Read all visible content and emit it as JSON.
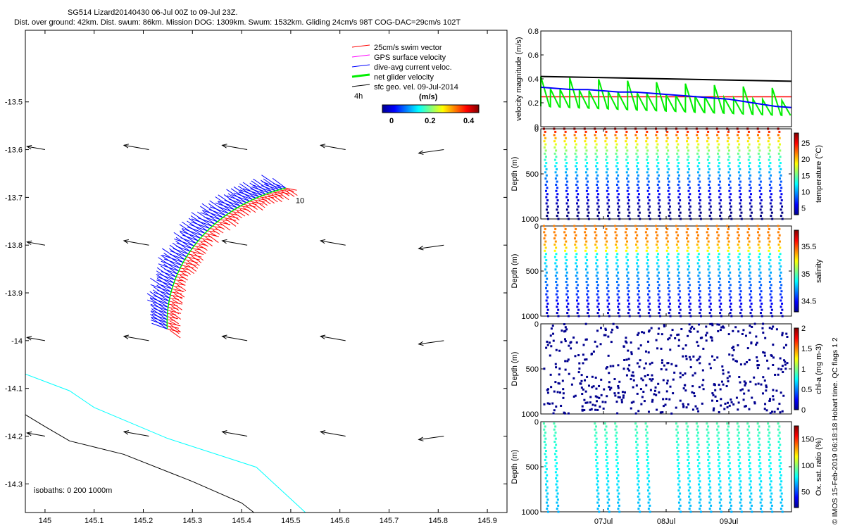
{
  "header": {
    "title_line1": "SG514 Lizard20140430 06-Jul 00Z to 09-Jul 23Z.",
    "title_line2": "Dist. over ground: 42km. Dist. swum: 86km. Mission DOG: 1309km. Swum: 1532km. Gliding 24cm/s 98T COG-DAC=29cm/s 102T"
  },
  "side_note": "© IMOS 15-Feb-2019 06:18:18 Hobart time. QC flags 1  2",
  "colors": {
    "swim": "#ff0000",
    "gps": "#ff00ff",
    "dac": "#0000ff",
    "net": "#00ee00",
    "geo": "#000000",
    "iso0": "#00ffff",
    "iso200": "#000000",
    "speed": "#ff0000"
  },
  "chart_data": [
    {
      "type": "scatter",
      "name": "track-map",
      "xlim": [
        144.96,
        145.94
      ],
      "ylim": [
        -14.36,
        -13.35
      ],
      "xticks": [
        145,
        145.1,
        145.2,
        145.3,
        145.4,
        145.5,
        145.6,
        145.7,
        145.8,
        145.9
      ],
      "yticks": [
        -13.5,
        -13.6,
        -13.7,
        -13.8,
        -13.9,
        -14,
        -14.1,
        -14.2,
        -14.3
      ],
      "legend": [
        {
          "label": "25cm/s swim vector",
          "color": "#ff0000"
        },
        {
          "label": "GPS surface velocity",
          "color": "#ff00ff"
        },
        {
          "label": "dive-avg current veloc.",
          "color": "#0000ff"
        },
        {
          "label": "net glider velocity",
          "color": "#00ee00"
        },
        {
          "label": "sfc geo. vel. 09-Jul-2014",
          "color": "#000000"
        }
      ],
      "time_label": "4h",
      "colorbar": {
        "title": "(m/s)",
        "ticks": [
          0,
          0.2,
          0.4
        ],
        "range": [
          0,
          0.5
        ]
      },
      "track_label": "10",
      "isobath_label": "isobaths: 0   200  1000m",
      "isobaths": [
        {
          "depth": 0,
          "color": "#00ffff",
          "points": [
            [
              144.96,
              -14.07
            ],
            [
              145.05,
              -14.105
            ],
            [
              145.1,
              -14.14
            ],
            [
              145.25,
              -14.205
            ],
            [
              145.43,
              -14.265
            ],
            [
              145.53,
              -14.36
            ]
          ]
        },
        {
          "depth": 1000,
          "color": "#000000",
          "points": [
            [
              144.96,
              -14.155
            ],
            [
              145.0,
              -14.18
            ],
            [
              145.05,
              -14.21
            ],
            [
              145.16,
              -14.238
            ],
            [
              145.3,
              -14.295
            ],
            [
              145.4,
              -14.34
            ],
            [
              145.425,
              -14.36
            ]
          ]
        }
      ],
      "geo_grid_lon": [
        144.96,
        145.0,
        145.2,
        145.4,
        145.6,
        145.8
      ],
      "geo_grid_lat": [
        -13.6,
        -13.8,
        -14.0,
        -14.2
      ]
    },
    {
      "type": "line",
      "name": "velocity",
      "ylabel": "velocity magnitude (m/s)",
      "ylim": [
        0,
        0.8
      ],
      "yticks": [
        0,
        0.2,
        0.4,
        0.6,
        0.8
      ],
      "xlim": [
        0,
        4
      ],
      "speed_line": 0.25,
      "series": [
        {
          "name": "sfc geo. vel.",
          "color": "#000000",
          "x": [
            0,
            4
          ],
          "values": [
            0.42,
            0.38
          ]
        },
        {
          "name": "dive-avg current",
          "color": "#0000ff",
          "x": [
            0,
            0.25,
            0.5,
            0.75,
            1,
            1.25,
            1.5,
            1.75,
            2,
            2.25,
            2.5,
            2.75,
            3,
            3.25,
            3.5,
            3.75,
            4
          ],
          "values": [
            0.33,
            0.32,
            0.31,
            0.31,
            0.3,
            0.29,
            0.29,
            0.28,
            0.27,
            0.26,
            0.25,
            0.24,
            0.23,
            0.21,
            0.19,
            0.17,
            0.16
          ]
        }
      ]
    },
    {
      "type": "scatter",
      "name": "temperature",
      "ylabel": "Depth (m)",
      "ylim": [
        0,
        1000
      ],
      "yticks": [
        0,
        500,
        1000
      ],
      "xlim": [
        0,
        4
      ],
      "cbar_label": "temperature (°C)",
      "cbar_ticks": [
        5,
        10,
        15,
        20,
        25
      ],
      "cbar_range": [
        3,
        28
      ]
    },
    {
      "type": "scatter",
      "name": "salinity",
      "ylabel": "Depth (m)",
      "ylim": [
        0,
        1000
      ],
      "yticks": [
        0,
        500,
        1000
      ],
      "xlim": [
        0,
        4
      ],
      "cbar_label": "salinity",
      "cbar_ticks": [
        34.5,
        35,
        35.5
      ],
      "cbar_range": [
        34.3,
        35.8
      ]
    },
    {
      "type": "scatter",
      "name": "chl-a",
      "ylabel": "Depth (m)",
      "ylim": [
        0,
        1000
      ],
      "yticks": [
        0,
        500,
        1000
      ],
      "xlim": [
        0,
        4
      ],
      "cbar_label": "chl-a (mg m-3)",
      "cbar_ticks": [
        0,
        0.5,
        1,
        1.5,
        2
      ],
      "cbar_range": [
        0,
        2
      ]
    },
    {
      "type": "scatter",
      "name": "oxygen",
      "ylabel": "Depth (m)",
      "ylim": [
        0,
        1000
      ],
      "yticks": [
        0,
        500,
        1000
      ],
      "xlim": [
        0,
        4
      ],
      "xticks": [
        1,
        2,
        3
      ],
      "xticklabels": [
        "07Jul",
        "08Jul",
        "09Jul"
      ],
      "cbar_label": "Ox. sat. ratio (%)",
      "cbar_ticks": [
        50,
        100,
        150
      ],
      "cbar_range": [
        20,
        175
      ]
    }
  ]
}
